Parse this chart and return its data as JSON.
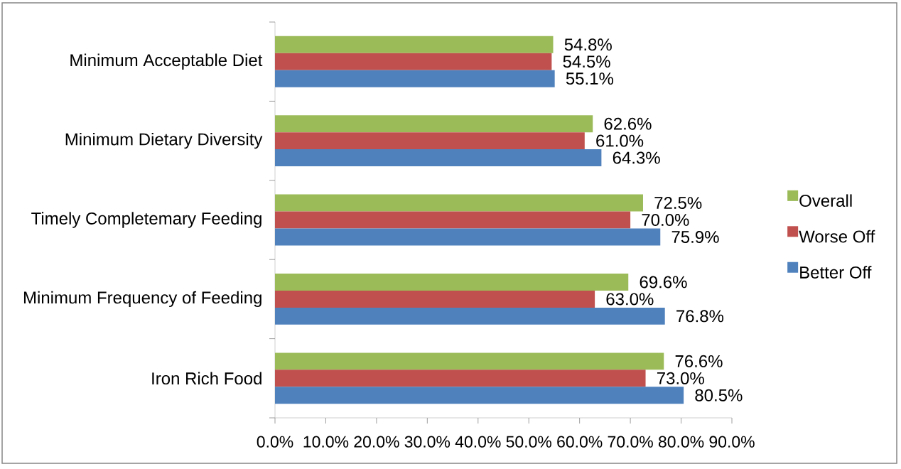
{
  "chart_data": {
    "type": "bar",
    "orientation": "horizontal",
    "categories": [
      "Minimum Acceptable Diet",
      "Minimum Dietary Diversity",
      "Timely Completemary Feeding",
      "Minimum Frequency of Feeding",
      "Iron Rich Food"
    ],
    "series": [
      {
        "name": "Overall",
        "color": "#9bbb59",
        "values": [
          54.8,
          62.6,
          72.5,
          69.6,
          76.6
        ],
        "value_labels": [
          "54.8%",
          "62.6%",
          "72.5%",
          "69.6%",
          "76.6%"
        ]
      },
      {
        "name": "Worse Off",
        "color": "#c0504d",
        "values": [
          54.5,
          61.0,
          70.0,
          63.0,
          73.0
        ],
        "value_labels": [
          "54.5%",
          "61.0%",
          "70.0%",
          "63.0%",
          "73.0%"
        ]
      },
      {
        "name": "Better Off",
        "color": "#4f81bd",
        "values": [
          55.1,
          64.3,
          75.9,
          76.8,
          80.5
        ],
        "value_labels": [
          "55.1%",
          "64.3%",
          "75.9%",
          "76.8%",
          "80.5%"
        ]
      }
    ],
    "xlim": [
      0,
      90
    ],
    "xticks": [
      {
        "value": 0,
        "label": "0.0%"
      },
      {
        "value": 10,
        "label": "10.0%"
      },
      {
        "value": 20,
        "label": "20.0%"
      },
      {
        "value": 30,
        "label": "30.0%"
      },
      {
        "value": 40,
        "label": "40.0%"
      },
      {
        "value": 50,
        "label": "50.0%"
      },
      {
        "value": 60,
        "label": "60.0%"
      },
      {
        "value": 70,
        "label": "70.0%"
      },
      {
        "value": 80,
        "label": "80.0%"
      },
      {
        "value": 90,
        "label": "90.0%"
      }
    ],
    "legend": "right"
  }
}
